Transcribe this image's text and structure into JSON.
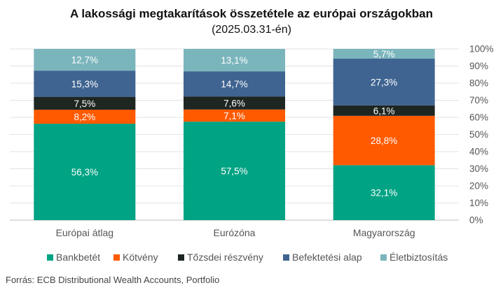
{
  "chart_data": {
    "type": "bar",
    "stacked": true,
    "title": "A lakossági megtakarítások összetétele az európai országokban",
    "subtitle": "(2025.03.31-én)",
    "categories": [
      "Európai átlag",
      "Eurózóna",
      "Magyarország"
    ],
    "series": [
      {
        "name": "Bankbetét",
        "color": "#00A383",
        "values": [
          56.3,
          57.5,
          32.1
        ],
        "labels": [
          "56,3%",
          "57,5%",
          "32,1%"
        ]
      },
      {
        "name": "Kötvény",
        "color": "#FF5A00",
        "values": [
          8.2,
          7.1,
          28.8
        ],
        "labels": [
          "8,2%",
          "7,1%",
          "28,8%"
        ]
      },
      {
        "name": "Tőzsdei részvény",
        "color": "#1E2622",
        "values": [
          7.5,
          7.6,
          6.1
        ],
        "labels": [
          "7,5%",
          "7,6%",
          "6,1%"
        ]
      },
      {
        "name": "Befektetési alap",
        "color": "#3F6491",
        "values": [
          15.3,
          14.7,
          27.3
        ],
        "labels": [
          "15,3%",
          "14,7%",
          "27,3%"
        ]
      },
      {
        "name": "Életbiztosítás",
        "color": "#7BB5BC",
        "values": [
          12.7,
          13.1,
          5.7
        ],
        "labels": [
          "12,7%",
          "13,1%",
          "5,7%"
        ]
      }
    ],
    "ylim": [
      0,
      100
    ],
    "yticks": [
      0,
      10,
      20,
      30,
      40,
      50,
      60,
      70,
      80,
      90,
      100
    ],
    "ytick_labels": [
      "0%",
      "10%",
      "20%",
      "30%",
      "40%",
      "50%",
      "60%",
      "70%",
      "80%",
      "90%",
      "100%"
    ],
    "y_axis_side": "right",
    "grid": true,
    "legend_position": "bottom"
  },
  "source": "Forrás: ECB Distributional Wealth Accounts, Portfolio"
}
